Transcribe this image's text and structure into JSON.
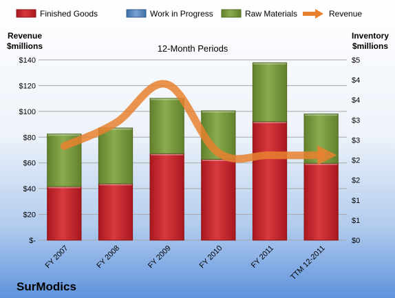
{
  "chart_data": {
    "type": "bar",
    "title": "12-Month Periods",
    "categories": [
      "FY 2007",
      "FY 2008",
      "FY 2009",
      "FY 2010",
      "FY 2011",
      "TTM 12-2011"
    ],
    "series": [
      {
        "name": "Finished Goods",
        "kind": "bar",
        "axis": "right",
        "color": "#c0272d",
        "values": [
          1.34,
          1.41,
          2.16,
          2.02,
          2.96,
          1.92
        ]
      },
      {
        "name": "Work in Progress",
        "kind": "bar",
        "axis": "right",
        "color": "#4f81bd",
        "values": [
          0,
          0,
          0,
          0,
          0,
          0
        ]
      },
      {
        "name": "Raw Materials",
        "kind": "bar",
        "axis": "right",
        "color": "#77933c",
        "values": [
          1.31,
          1.39,
          1.38,
          1.21,
          1.47,
          1.23
        ]
      },
      {
        "name": "Revenue",
        "kind": "line",
        "axis": "left",
        "color": "#e8812f",
        "values": [
          73,
          91,
          121,
          68,
          66,
          66
        ]
      }
    ],
    "left_axis": {
      "label_line1": "Revenue",
      "label_line2": "$millions",
      "range": [
        0,
        140
      ],
      "ticks": [
        0,
        20,
        40,
        60,
        80,
        100,
        120,
        140
      ],
      "tick_labels": [
        "$-",
        "$20",
        "$40",
        "$60",
        "$80",
        "$100",
        "$120",
        "$140"
      ]
    },
    "right_axis": {
      "label_line1": "Inventory",
      "label_line2": "$millions",
      "range": [
        0,
        4.5
      ],
      "ticks": [
        0,
        0.5,
        1,
        1.5,
        2,
        2.5,
        3,
        3.5,
        4,
        4.5
      ],
      "tick_labels": [
        "$0",
        "$1",
        "$1",
        "$2",
        "$2",
        "$3",
        "$3",
        "$4",
        "$4",
        "$5"
      ]
    },
    "grid": true,
    "legend_position": "top"
  },
  "company": "SurModics"
}
